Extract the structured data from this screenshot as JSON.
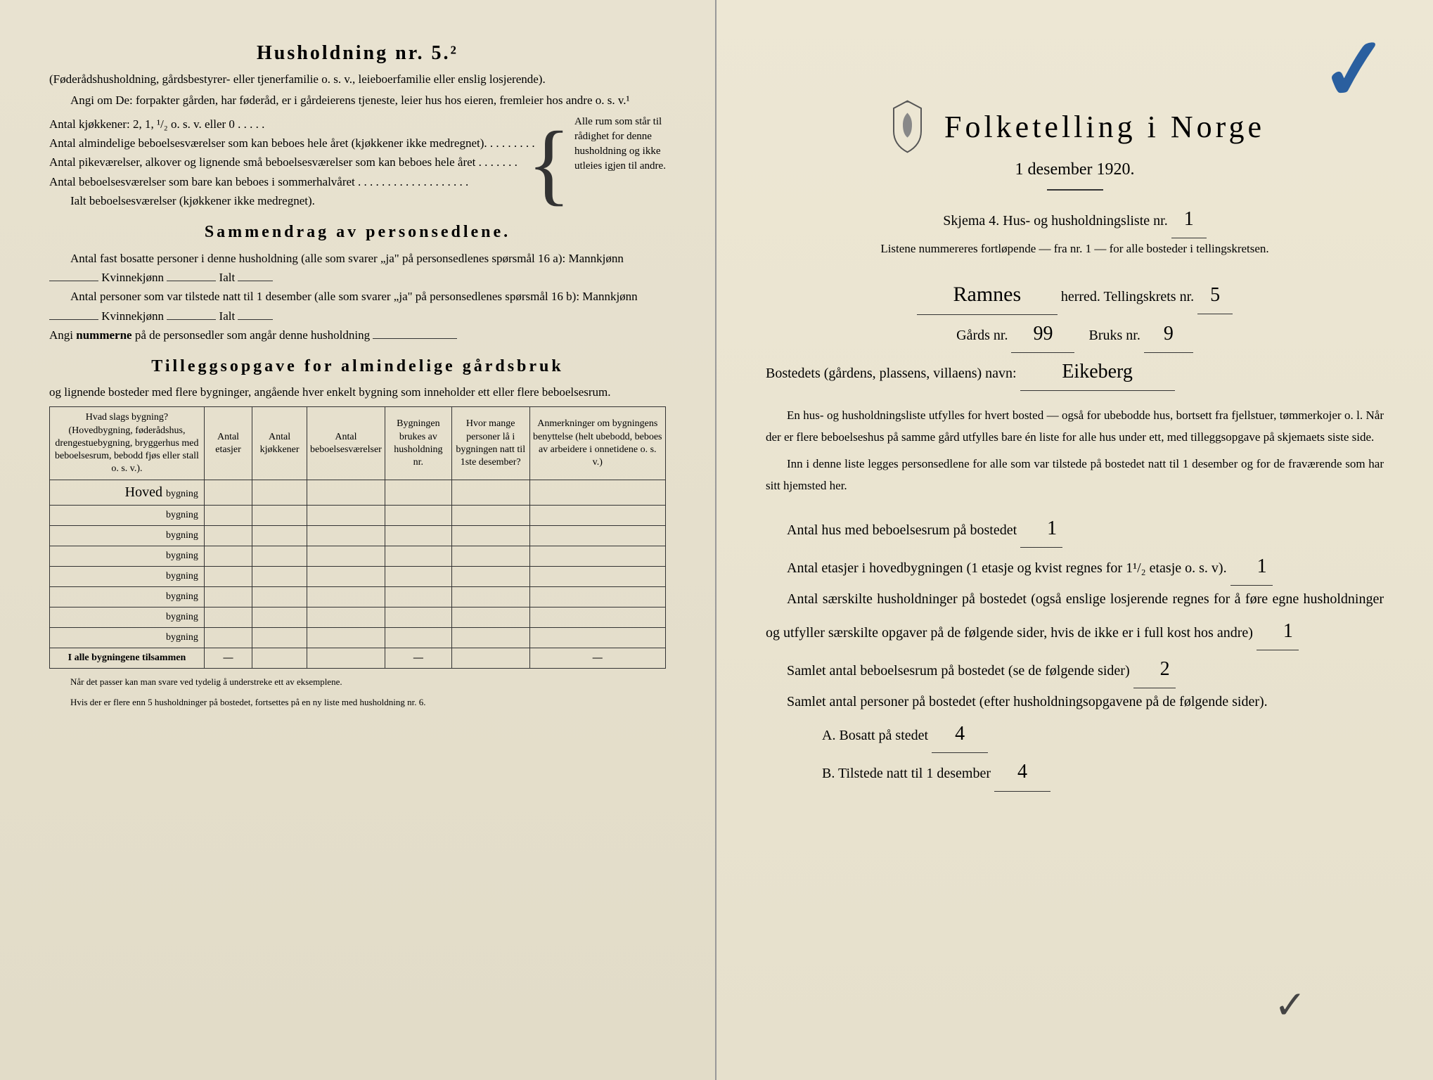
{
  "left": {
    "title": "Husholdning nr. 5.²",
    "intro1": "(Føderådshusholdning, gårdsbestyrer- eller tjenerfamilie o. s. v., leieboerfamilie eller enslig losjerende).",
    "intro2": "Angi om De: forpakter gården, har føderåd, er i gårdeierens tjeneste, leier hus hos eieren, fremleier hos andre o. s. v.¹",
    "kj_line": "Antal kjøkkener: 2, 1, ¹/₂ o. s. v. eller 0 . . . . .",
    "rum1": "Antal almindelige beboelsesværelser som kan beboes hele året (kjøkkener ikke medregnet). . . . . . . . .",
    "rum2": "Antal pikeværelser, alkover og lignende små beboelsesværelser som kan beboes hele året . . . . . . .",
    "rum3": "Antal beboelsesværelser som bare kan beboes i sommerhalvåret . . . . . . . . . . . . . . . . . . .",
    "rum4": "Ialt beboelsesværelser (kjøkkener ikke medregnet).",
    "side_note": "Alle rum som står til rådighet for denne husholdning og ikke utleies igjen til andre.",
    "section2_title": "Sammendrag av personsedlene.",
    "s2_l1": "Antal fast bosatte personer i denne husholdning (alle som svarer „ja\" på personsedlenes spørsmål 16 a): Mannkjønn",
    "s2_kv": "Kvinnekjønn",
    "s2_ialt": "Ialt",
    "s2_l2": "Antal personer som var tilstede natt til 1 desember (alle som svarer „ja\" på personsedlenes spørsmål 16 b): Mannkjønn",
    "s2_l3a": "Angi ",
    "s2_l3b": "nummerne",
    "s2_l3c": " på de personsedler som angår denne husholdning",
    "section3_title": "Tilleggsopgave for almindelige gårdsbruk",
    "s3_sub": "og lignende bosteder med flere bygninger, angående hver enkelt bygning som inneholder ett eller flere beboelsesrum.",
    "table": {
      "headers": [
        "Hvad slags bygning?\n(Hovedbygning, føderådshus, drengestuebygning, bryggerhus med beboelsesrum, bebodd fjøs eller stall o. s. v.).",
        "Antal etasjer",
        "Antal kjøkkener",
        "Antal beboelsesværelser",
        "Bygningen brukes av husholdning nr.",
        "Hvor mange personer lå i bygningen natt til 1ste desember?",
        "Anmerkninger om bygningens benyttelse (helt ubebodd, beboes av arbeidere i onnetidene o. s. v.)"
      ],
      "row1_hand": "Hoved",
      "bygning_label": "bygning",
      "total_label": "I alle bygningene tilsammen",
      "row_count": 8
    },
    "footnote1": "Når det passer kan man svare ved tydelig å understreke ett av eksemplene.",
    "footnote2": "Hvis der er flere enn 5 husholdninger på bostedet, fortsettes på en ny liste med husholdning nr. 6."
  },
  "right": {
    "main_title": "Folketelling i Norge",
    "date": "1 desember 1920.",
    "skjema": "Skjema 4.  Hus- og husholdningsliste nr.",
    "skjema_nr": "1",
    "liste_note": "Listene nummereres fortløpende — fra nr. 1 — for alle bosteder i tellingskretsen.",
    "herred_val": "Ramnes",
    "herred_lbl": "herred.   Tellingskrets nr.",
    "krets_nr": "5",
    "gards_lbl": "Gårds nr.",
    "gards_nr": "99",
    "bruks_lbl": "Bruks nr.",
    "bruks_nr": "9",
    "bosted_lbl": "Bostedets (gårdens, plassens, villaens) navn:",
    "bosted_val": "Eikeberg",
    "para1": "En hus- og husholdningsliste utfylles for hvert bosted — også for ubebodde hus, bortsett fra fjellstuer, tømmerkojer o. l.  Når der er flere beboelseshus på samme gård utfylles bare én liste for alle hus under ett, med tilleggsopgave på skjemaets siste side.",
    "para2": "Inn i denne liste legges personsedlene for alle som var tilstede på bostedet natt til 1 desember og for de fraværende som har sitt hjemsted her.",
    "q1": "Antal hus med beboelsesrum på bostedet",
    "q1_val": "1",
    "q2": "Antal etasjer i hovedbygningen (1 etasje og kvist regnes for 1¹/₂ etasje o. s. v).",
    "q2_val": "1",
    "q3": "Antal særskilte husholdninger på bostedet (også enslige losjerende regnes for å føre egne husholdninger og utfyller særskilte opgaver på de følgende sider, hvis de ikke er i full kost hos andre)",
    "q3_val": "1",
    "q4": "Samlet antal beboelsesrum på bostedet (se de følgende sider)",
    "q4_val": "2",
    "q5": "Samlet antal personer på bostedet (efter husholdningsopgavene på de følgende sider).",
    "qA": "A.  Bosatt på stedet",
    "qA_val": "4",
    "qB": "B.  Tilstede natt til 1 desember",
    "qB_val": "4"
  },
  "colors": {
    "paper": "#e8e2d0",
    "text": "#2a2a2a",
    "pen_blue": "#2a5f9f"
  }
}
